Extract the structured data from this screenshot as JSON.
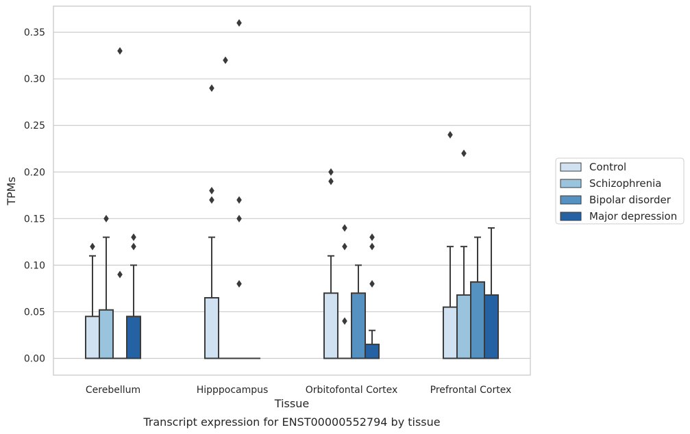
{
  "chart_data": {
    "type": "box",
    "xlabel": "Tissue",
    "ylabel": "TPMs",
    "caption": "Transcript expression for ENST00000552794 by tissue",
    "ylim": [
      -0.018,
      0.378
    ],
    "yticks": [
      0.0,
      0.05,
      0.1,
      0.15,
      0.2,
      0.25,
      0.3,
      0.35
    ],
    "ytick_labels": [
      "0.00",
      "0.05",
      "0.10",
      "0.15",
      "0.20",
      "0.25",
      "0.30",
      "0.35"
    ],
    "grid": true,
    "legend_position": "right",
    "categories": [
      "Cerebellum",
      "Hipppocampus",
      "Orbitofontal Cortex",
      "Prefrontal Cortex"
    ],
    "series": [
      {
        "name": "Control",
        "color": "#d0e1f2",
        "boxes": [
          {
            "q1": 0.0,
            "median": 0.0,
            "q3": 0.045,
            "whisker_low": 0.0,
            "whisker_high": 0.11,
            "outliers": [
              0.12
            ]
          },
          {
            "q1": 0.0,
            "median": 0.0,
            "q3": 0.065,
            "whisker_low": 0.0,
            "whisker_high": 0.13,
            "outliers": [
              0.17,
              0.18,
              0.29
            ]
          },
          {
            "q1": 0.0,
            "median": 0.0,
            "q3": 0.07,
            "whisker_low": 0.0,
            "whisker_high": 0.11,
            "outliers": [
              0.19,
              0.2
            ]
          },
          {
            "q1": 0.0,
            "median": 0.0,
            "q3": 0.055,
            "whisker_low": 0.0,
            "whisker_high": 0.12,
            "outliers": [
              0.24
            ]
          }
        ]
      },
      {
        "name": "Schizophrenia",
        "color": "#9ac3dd",
        "boxes": [
          {
            "q1": 0.0,
            "median": 0.0,
            "q3": 0.052,
            "whisker_low": 0.0,
            "whisker_high": 0.13,
            "outliers": [
              0.15
            ]
          },
          {
            "q1": 0.0,
            "median": 0.0,
            "q3": 0.0,
            "whisker_low": 0.0,
            "whisker_high": 0.0,
            "outliers": [
              0.32
            ]
          },
          {
            "q1": 0.0,
            "median": 0.0,
            "q3": 0.0,
            "whisker_low": 0.0,
            "whisker_high": 0.0,
            "outliers": [
              0.04,
              0.12,
              0.14
            ]
          },
          {
            "q1": 0.0,
            "median": 0.0,
            "q3": 0.068,
            "whisker_low": 0.0,
            "whisker_high": 0.12,
            "outliers": [
              0.22
            ]
          }
        ]
      },
      {
        "name": "Bipolar disorder",
        "color": "#5592c2",
        "boxes": [
          {
            "q1": 0.0,
            "median": 0.0,
            "q3": 0.0,
            "whisker_low": 0.0,
            "whisker_high": 0.0,
            "outliers": [
              0.09,
              0.33
            ]
          },
          {
            "q1": 0.0,
            "median": 0.0,
            "q3": 0.0,
            "whisker_low": 0.0,
            "whisker_high": 0.0,
            "outliers": [
              0.08,
              0.15,
              0.17,
              0.36
            ]
          },
          {
            "q1": 0.0,
            "median": 0.0,
            "q3": 0.07,
            "whisker_low": 0.0,
            "whisker_high": 0.1,
            "outliers": []
          },
          {
            "q1": 0.0,
            "median": 0.0,
            "q3": 0.082,
            "whisker_low": 0.0,
            "whisker_high": 0.13,
            "outliers": []
          }
        ]
      },
      {
        "name": "Major depression",
        "color": "#2462a4",
        "boxes": [
          {
            "q1": 0.0,
            "median": 0.0,
            "q3": 0.045,
            "whisker_low": 0.0,
            "whisker_high": 0.1,
            "outliers": [
              0.12,
              0.13
            ]
          },
          {
            "q1": 0.0,
            "median": 0.0,
            "q3": 0.0,
            "whisker_low": 0.0,
            "whisker_high": 0.0,
            "outliers": []
          },
          {
            "q1": 0.0,
            "median": 0.0,
            "q3": 0.015,
            "whisker_low": 0.0,
            "whisker_high": 0.03,
            "outliers": [
              0.08,
              0.12,
              0.13
            ]
          },
          {
            "q1": 0.0,
            "median": 0.0,
            "q3": 0.068,
            "whisker_low": 0.0,
            "whisker_high": 0.14,
            "outliers": []
          }
        ]
      }
    ]
  }
}
